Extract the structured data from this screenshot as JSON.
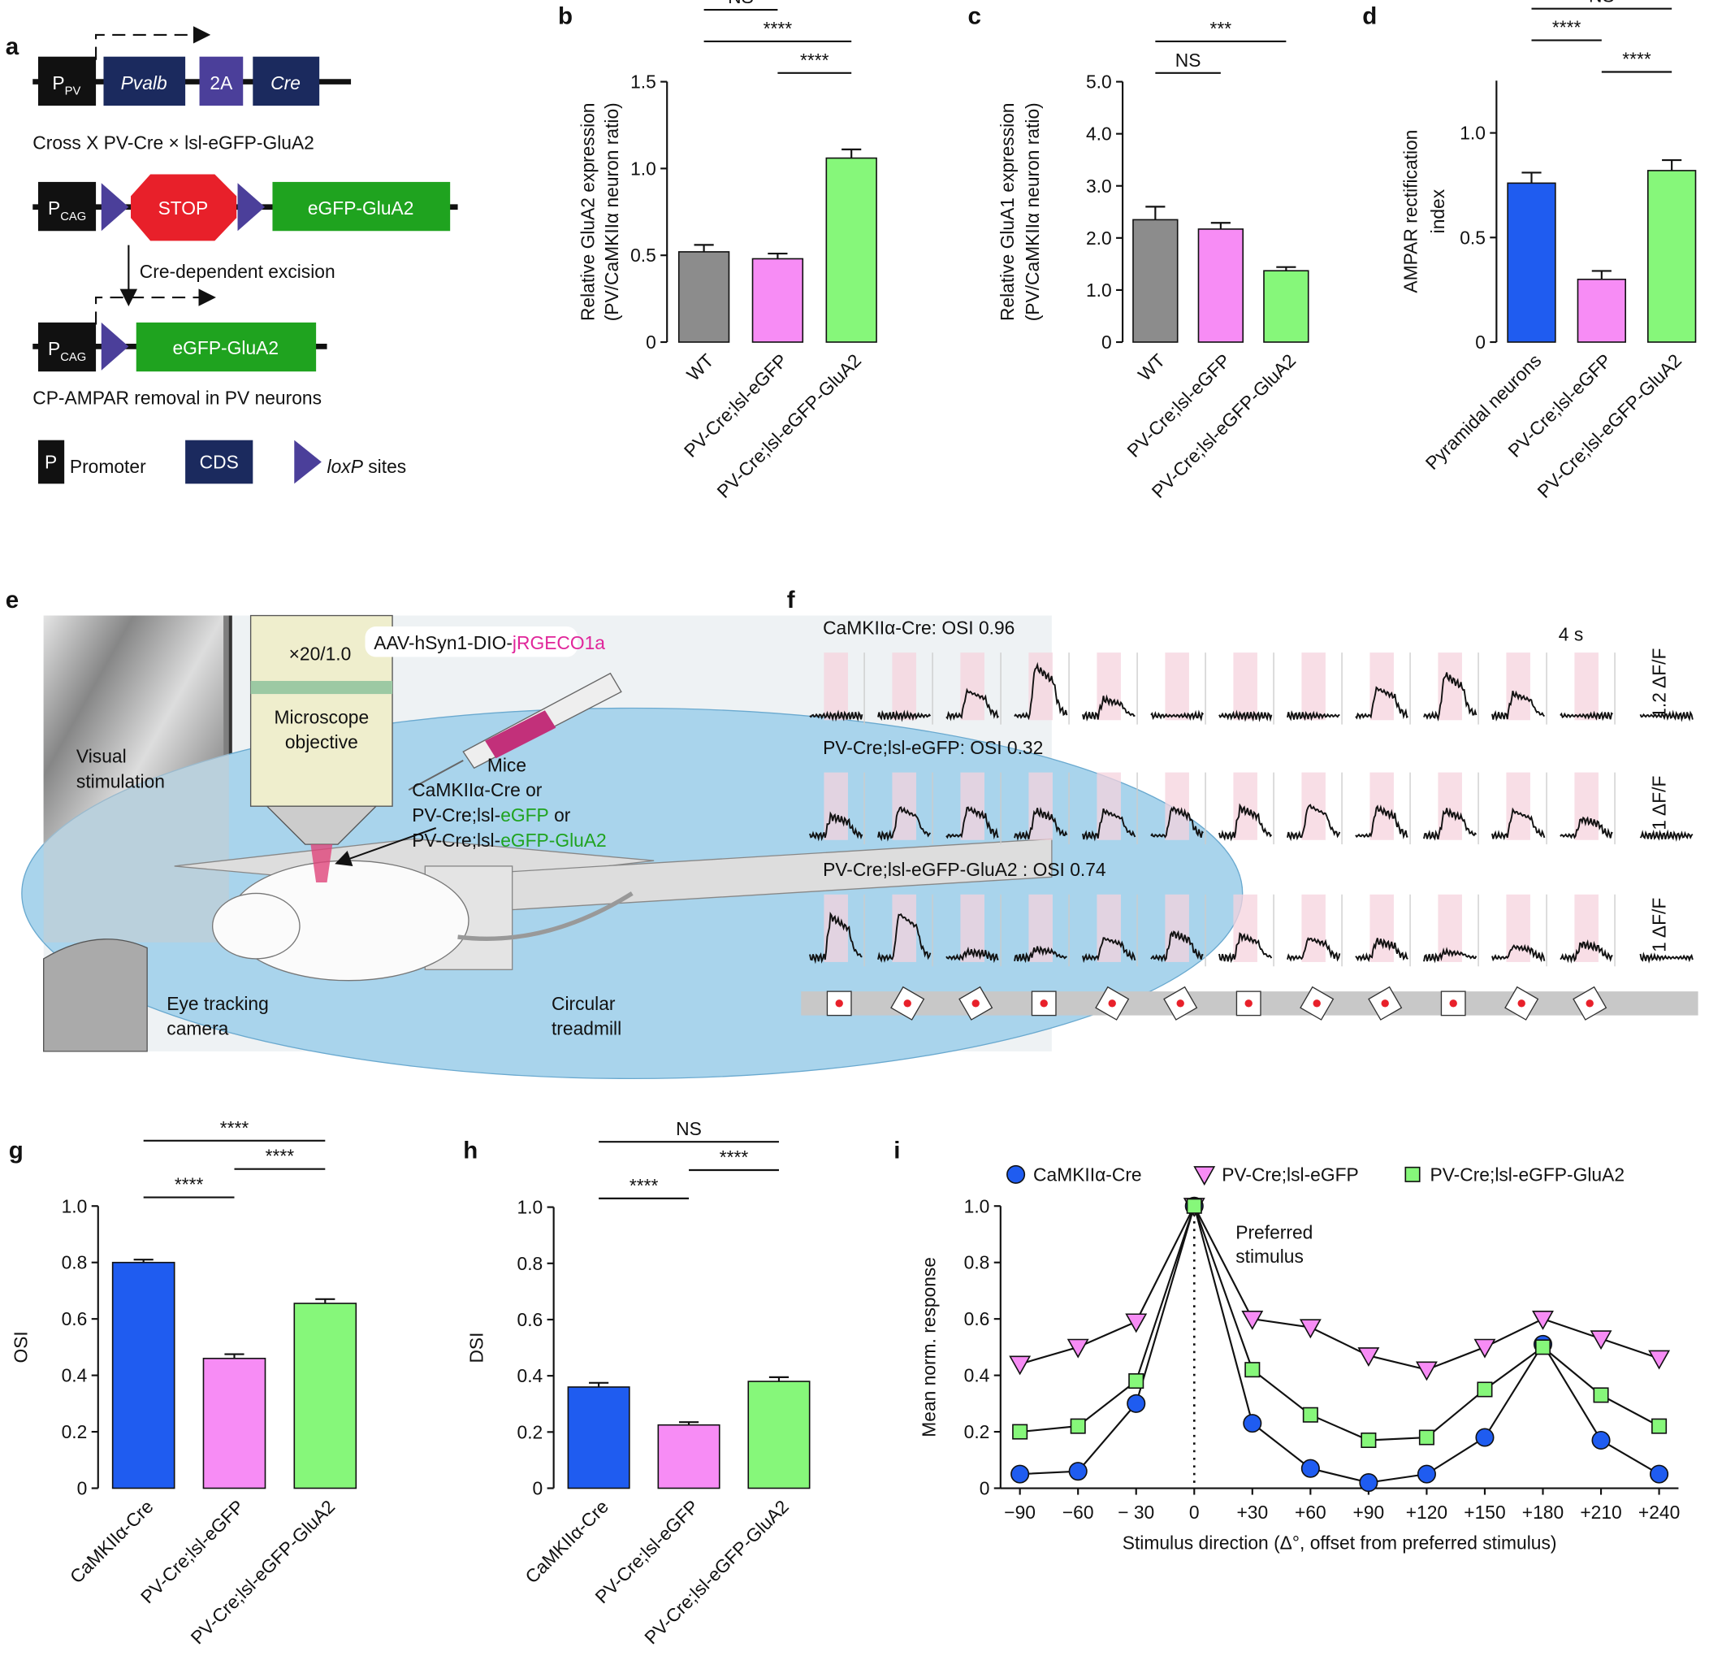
{
  "panel_a": {
    "label": "a",
    "construct1": {
      "promoter": "P",
      "promoter_sub": "PV",
      "genes": [
        "Pvalb",
        "2A",
        "Cre"
      ]
    },
    "cross": "Cross X PV-Cre × lsl-eGFP-GluA2",
    "construct2": {
      "promoter": "P",
      "promoter_sub": "CAG",
      "stop": "STOP",
      "gene": "eGFP-GluA2"
    },
    "excision": "Cre-dependent excision",
    "construct3": {
      "promoter": "P",
      "promoter_sub": "CAG",
      "gene": "eGFP-GluA2"
    },
    "result": "CP-AMPAR removal in PV neurons",
    "legend": {
      "promoter_symbol": "P",
      "promoter": "Promoter",
      "cds": "CDS",
      "loxp": "loxP",
      "loxp_rest": " sites"
    }
  },
  "panel_e": {
    "label": "e",
    "objective_mag": "×20/1.0",
    "virus": "AAV-hSyn1-DIO-",
    "virus_indicator": "jRGECO1a",
    "microscope": [
      "Microscope",
      "objective"
    ],
    "visual": [
      "Visual",
      "stimulation"
    ],
    "mice": "Mice",
    "line1": "CaMKIIα-Cre or",
    "line2": [
      "PV-Cre;lsl-",
      "eGFP",
      " or"
    ],
    "line3": [
      "PV-Cre;lsl-",
      "eGFP-GluA2"
    ],
    "camera": [
      "Eye tracking",
      "camera"
    ],
    "treadmill": [
      "Circular",
      "treadmill"
    ]
  },
  "panel_f": {
    "label": "f",
    "time_scale": "4 s",
    "rows": [
      {
        "title": "CaMKIIα-Cre:  OSI 0.96",
        "scale": "1.2 ΔF/F",
        "responses": [
          0,
          0,
          0.45,
          0.9,
          0.3,
          0,
          0,
          0,
          0.5,
          0.75,
          0.4,
          0
        ]
      },
      {
        "title": "PV-Cre;lsl-eGFP:  OSI 0.32",
        "scale": "1 ΔF/F",
        "responses": [
          0.35,
          0.5,
          0.5,
          0.45,
          0.45,
          0.5,
          0.5,
          0.55,
          0.5,
          0.45,
          0.45,
          0.3
        ]
      },
      {
        "title": "PV-Cre;lsl-eGFP-GluA2 :  OSI 0.74",
        "scale": "1 ΔF/F",
        "responses": [
          0.75,
          0.8,
          0.1,
          0.15,
          0.35,
          0.45,
          0.4,
          0.35,
          0.3,
          0.1,
          0.2,
          0.25
        ]
      }
    ]
  },
  "chart_data": [
    {
      "type": "bar",
      "label": "b",
      "ylabel": [
        "Relative GluA2 expression",
        "(PV/CaMKIIα neuron ratio)"
      ],
      "categories": [
        "WT",
        "PV-Cre;lsl-eGFP",
        "PV-Cre;lsl-eGFP-GluA2"
      ],
      "values": [
        0.52,
        0.48,
        1.06
      ],
      "errors": [
        0.04,
        0.03,
        0.05
      ],
      "colors": [
        "#8c8c8c",
        "#f78cf5",
        "#86f77a"
      ],
      "ylim": [
        0,
        1.5
      ],
      "yticks": [
        0,
        0.5,
        {
          "value": 1,
          "label": "1.0"
        },
        1.5
      ],
      "significance": [
        {
          "groups": [
            "WT",
            "PV-Cre;lsl-eGFP"
          ],
          "label": "NS"
        },
        {
          "groups": [
            "WT",
            "PV-Cre;lsl-eGFP-GluA2"
          ],
          "label": "****"
        },
        {
          "groups": [
            "PV-Cre;lsl-eGFP",
            "PV-Cre;lsl-eGFP-GluA2"
          ],
          "label": "****"
        }
      ]
    },
    {
      "type": "bar",
      "label": "c",
      "ylabel": [
        "Relative GluA1 expression",
        "(PV/CaMKIIα neuron ratio)"
      ],
      "categories": [
        "WT",
        "PV-Cre;lsl-eGFP",
        "PV-Cre;lsl-eGFP-GluA2"
      ],
      "values": [
        2.35,
        2.17,
        1.37
      ],
      "errors": [
        0.25,
        0.12,
        0.07
      ],
      "colors": [
        "#8c8c8c",
        "#f78cf5",
        "#86f77a"
      ],
      "ylim": [
        0,
        5
      ],
      "yticks": [
        0,
        {
          "value": 1,
          "label": "1.0"
        },
        {
          "value": 2,
          "label": "2.0"
        },
        {
          "value": 3,
          "label": "3.0"
        },
        {
          "value": 4,
          "label": "4.0"
        },
        {
          "value": 5,
          "label": "5.0"
        }
      ],
      "significance": [
        {
          "groups": [
            "WT",
            "PV-Cre;lsl-eGFP-GluA2"
          ],
          "label": "***"
        },
        {
          "groups": [
            "WT",
            "PV-Cre;lsl-eGFP"
          ],
          "label": "NS"
        }
      ]
    },
    {
      "type": "bar",
      "label": "d",
      "ylabel": [
        "AMPAR rectification",
        "index"
      ],
      "categories": [
        "Pyramidal neurons",
        "PV-Cre;lsl-eGFP",
        "PV-Cre;lsl-eGFP-GluA2"
      ],
      "values": [
        0.76,
        0.3,
        0.82
      ],
      "errors": [
        0.05,
        0.04,
        0.05
      ],
      "colors": [
        "#1f5cf0",
        "#f78cf5",
        "#86f77a"
      ],
      "ylim": [
        0,
        1.25
      ],
      "yticks": [
        0,
        0.5,
        {
          "value": 1,
          "label": "1.0"
        }
      ],
      "significance": [
        {
          "groups": [
            "Pyramidal neurons",
            "PV-Cre;lsl-eGFP-GluA2"
          ],
          "label": "NS"
        },
        {
          "groups": [
            "Pyramidal neurons",
            "PV-Cre;lsl-eGFP"
          ],
          "label": "****"
        },
        {
          "groups": [
            "PV-Cre;lsl-eGFP",
            "PV-Cre;lsl-eGFP-GluA2"
          ],
          "label": "****"
        }
      ]
    },
    {
      "type": "bar",
      "label": "g",
      "ylabel": "OSI",
      "categories": [
        "CaMKIIα-Cre",
        "PV-Cre;lsl-eGFP",
        "PV-Cre;lsl-eGFP-GluA2"
      ],
      "values": [
        0.8,
        0.46,
        0.655
      ],
      "errors": [
        0.01,
        0.015,
        0.015
      ],
      "colors": [
        "#1f5cf0",
        "#f78cf5",
        "#86f77a"
      ],
      "ylim": [
        0,
        1
      ],
      "yticks": [
        0,
        0.2,
        0.4,
        0.6,
        0.8,
        {
          "value": 1,
          "label": "1.0"
        }
      ],
      "significance": [
        {
          "groups": [
            "CaMKIIα-Cre",
            "PV-Cre;lsl-eGFP-GluA2"
          ],
          "label": "****"
        },
        {
          "groups": [
            "PV-Cre;lsl-eGFP",
            "PV-Cre;lsl-eGFP-GluA2"
          ],
          "label": "****"
        },
        {
          "groups": [
            "CaMKIIα-Cre",
            "PV-Cre;lsl-eGFP"
          ],
          "label": "****"
        }
      ]
    },
    {
      "type": "bar",
      "label": "h",
      "ylabel": "DSI",
      "categories": [
        "CaMKIIα-Cre",
        "PV-Cre;lsl-eGFP",
        "PV-Cre;lsl-eGFP-GluA2"
      ],
      "values": [
        0.36,
        0.225,
        0.38
      ],
      "errors": [
        0.015,
        0.01,
        0.015
      ],
      "colors": [
        "#1f5cf0",
        "#f78cf5",
        "#86f77a"
      ],
      "ylim": [
        0,
        1
      ],
      "yticks": [
        0,
        0.2,
        0.4,
        0.6,
        0.8,
        {
          "value": 1,
          "label": "1.0"
        }
      ],
      "significance": [
        {
          "groups": [
            "CaMKIIα-Cre",
            "PV-Cre;lsl-eGFP-GluA2"
          ],
          "label": "NS"
        },
        {
          "groups": [
            "PV-Cre;lsl-eGFP",
            "PV-Cre;lsl-eGFP-GluA2"
          ],
          "label": "****"
        },
        {
          "groups": [
            "CaMKIIα-Cre",
            "PV-Cre;lsl-eGFP"
          ],
          "label": "****"
        }
      ]
    },
    {
      "type": "line",
      "label": "i",
      "ylabel": "Mean norm. response",
      "xlabel": "Stimulus direction (Δ°, offset from preferred stimulus)",
      "annotation": [
        "Preferred",
        "stimulus"
      ],
      "reference_line_x": 0,
      "x": [
        -90,
        -60,
        -30,
        0,
        30,
        60,
        90,
        120,
        150,
        180,
        210,
        240
      ],
      "xlim": [
        -100,
        250
      ],
      "xticks": [
        {
          "value": -90,
          "label": "−90"
        },
        {
          "value": -60,
          "label": "−60"
        },
        {
          "value": -30,
          "label": "− 30"
        },
        0,
        {
          "value": 30,
          "label": "+30"
        },
        {
          "value": 60,
          "label": "+60"
        },
        {
          "value": 90,
          "label": "+90"
        },
        {
          "value": 120,
          "label": "+120"
        },
        {
          "value": 150,
          "label": "+150"
        },
        {
          "value": 180,
          "label": "+180"
        },
        {
          "value": 210,
          "label": "+210"
        },
        {
          "value": 240,
          "label": "+240"
        }
      ],
      "ylim": [
        0,
        1
      ],
      "yticks": [
        0,
        0.2,
        0.4,
        0.6,
        0.8,
        {
          "value": 1,
          "label": "1.0"
        }
      ],
      "series": [
        {
          "name": "CaMKIIα-Cre",
          "color": "#1f5cf0",
          "marker": "circle",
          "values": [
            0.05,
            0.06,
            0.3,
            1,
            0.23,
            0.07,
            0.02,
            0.05,
            0.18,
            0.51,
            0.17,
            0.05
          ]
        },
        {
          "name": "PV-Cre;lsl-eGFP",
          "color": "#f78cf5",
          "marker": "triangle-down",
          "values": [
            0.44,
            0.5,
            0.59,
            1,
            0.6,
            0.57,
            0.47,
            0.42,
            0.5,
            0.6,
            0.53,
            0.46
          ]
        },
        {
          "name": "PV-Cre;lsl-eGFP-GluA2",
          "color": "#86f77a",
          "marker": "square",
          "values": [
            0.2,
            0.22,
            0.38,
            1,
            0.42,
            0.26,
            0.17,
            0.18,
            0.35,
            0.5,
            0.33,
            0.22
          ]
        }
      ]
    }
  ]
}
